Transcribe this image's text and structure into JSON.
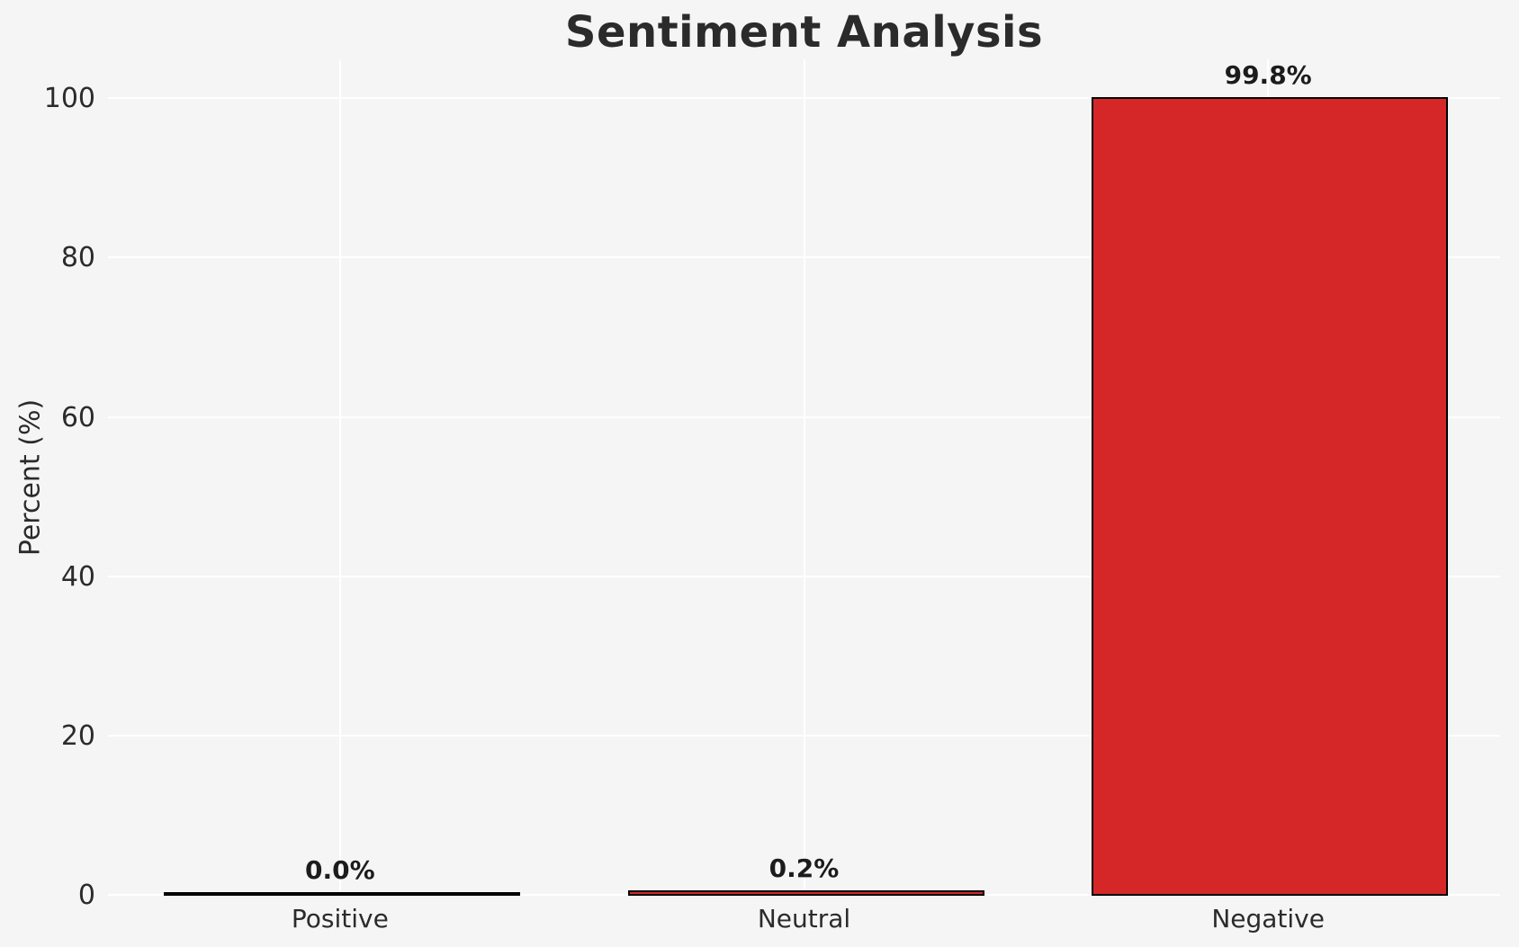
{
  "chart_data": {
    "type": "bar",
    "title": "Sentiment Analysis",
    "xlabel": "",
    "ylabel": "Percent (%)",
    "categories": [
      "Positive",
      "Neutral",
      "Negative"
    ],
    "values": [
      0.0,
      0.2,
      99.8
    ],
    "value_labels": [
      "0.0%",
      "0.2%",
      "99.8%"
    ],
    "yticks": [
      0,
      20,
      40,
      60,
      80,
      100
    ],
    "ylim": [
      0,
      105
    ],
    "grid": "horizontal and vertical white gridlines, no axis spines, no legend",
    "colors": {
      "background": "#f5f5f6",
      "gridline": "#ffffff",
      "bar_fill": "#d62728",
      "bar_edge": "#000000",
      "text": "#2b2b2b",
      "value_label_text": "#1c1c1c"
    }
  }
}
